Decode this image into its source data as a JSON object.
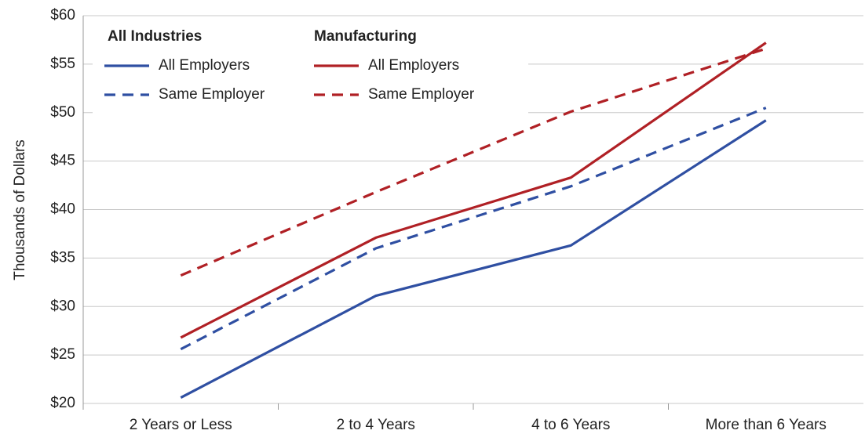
{
  "chart_data": {
    "type": "line",
    "y_label": "Thousands of Dollars",
    "categories": [
      "2 Years or Less",
      "2 to 4 Years",
      "4 to 6 Years",
      "More than 6 Years"
    ],
    "legend_titles": [
      "All Industries",
      "Manufacturing"
    ],
    "series": [
      {
        "name": "All Employers",
        "color": "#2f4fa2",
        "linestyle": "solid",
        "values": [
          20.6,
          31.1,
          36.3,
          49.2
        ]
      },
      {
        "name": "Same Employer",
        "color": "#2f4fa2",
        "linestyle": "dashed",
        "values": [
          25.6,
          36.0,
          42.4,
          50.5
        ]
      },
      {
        "name": "All Employers",
        "color": "#b02025",
        "linestyle": "solid",
        "values": [
          26.8,
          37.1,
          43.3,
          57.2
        ]
      },
      {
        "name": "Same Employer",
        "color": "#b02025",
        "linestyle": "dashed",
        "values": [
          33.2,
          41.8,
          50.1,
          56.6
        ]
      }
    ],
    "ylim": [
      20,
      60
    ],
    "yticks": [
      {
        "value": 20,
        "label": "$20"
      },
      {
        "value": 25,
        "label": "$25"
      },
      {
        "value": 30,
        "label": "$30"
      },
      {
        "value": 35,
        "label": "$35"
      },
      {
        "value": 40,
        "label": "$40"
      },
      {
        "value": 45,
        "label": "$45"
      },
      {
        "value": 50,
        "label": "$50"
      },
      {
        "value": 55,
        "label": "$55"
      },
      {
        "value": 60,
        "label": "$60"
      }
    ],
    "grid": true
  }
}
